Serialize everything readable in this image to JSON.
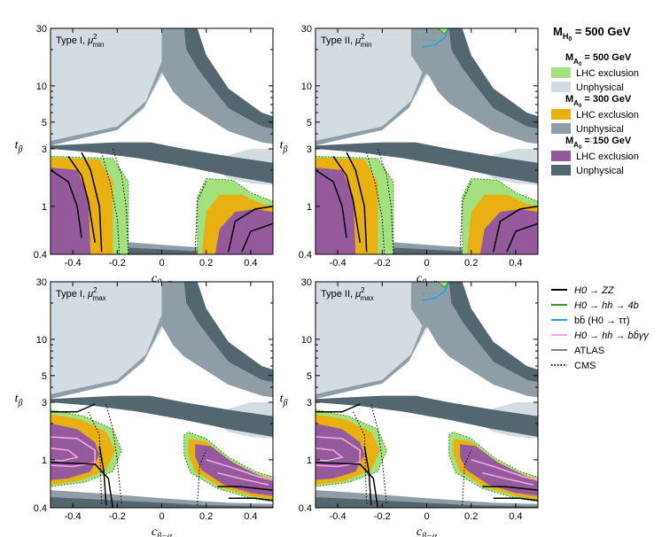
{
  "chart_data": {
    "type": "contour-exclusion",
    "main_title": "M_H0 = 500 GeV",
    "xlabel": "c_{β−α}",
    "ylabel": "t_β",
    "xlim": [
      -0.5,
      0.5
    ],
    "ylim": [
      0.4,
      30
    ],
    "yscale": "log",
    "xticks": [
      -0.4,
      -0.2,
      0,
      0.2,
      0.4
    ],
    "xtick_labels": [
      "-0.4",
      "-0.2",
      "0",
      "0.2",
      "0.4"
    ],
    "yticks": [
      0.4,
      1,
      3,
      5,
      10,
      30
    ],
    "ytick_labels": [
      "0.4",
      "1",
      "3",
      "5",
      "10",
      "30"
    ],
    "panels": [
      {
        "id": "type1-min",
        "title": "Type I, μ²_min",
        "model": "Type I",
        "mu": "min"
      },
      {
        "id": "type2-min",
        "title": "Type II, μ²_min",
        "model": "Type II",
        "mu": "min"
      },
      {
        "id": "type1-max",
        "title": "Type I, μ²_max",
        "model": "Type I",
        "mu": "max"
      },
      {
        "id": "type2-max",
        "title": "Type II, μ²_max",
        "model": "Type II",
        "mu": "max"
      }
    ],
    "region_legend": [
      {
        "heading": "M_A0 = 500 GeV",
        "exclusion_color": "#a3e07e",
        "unphysical_color": "#d3dce0"
      },
      {
        "heading": "M_A0 = 300 GeV",
        "exclusion_color": "#e8b010",
        "unphysical_color": "#8f9ea6"
      },
      {
        "heading": "M_A0 = 150 GeV",
        "exclusion_color": "#955a9c",
        "unphysical_color": "#546670"
      }
    ],
    "exclusion_label": "LHC exclusion",
    "unphysical_label": "Unphysical",
    "line_legend": [
      {
        "label": "H0 → ZZ",
        "color": "#000000",
        "style": "solid"
      },
      {
        "label": "H0 → hh → 4b",
        "color": "#3a9a1e",
        "style": "solid"
      },
      {
        "label": "bb̄ (H0 → ττ)",
        "color": "#1aa6e0",
        "style": "solid"
      },
      {
        "label": "H0 → hh → bb̄γγ",
        "color": "#f0a8e0",
        "style": "solid"
      },
      {
        "label": "ATLAS",
        "color": "#808080",
        "style": "solid"
      },
      {
        "label": "CMS",
        "color": "#000000",
        "style": "dotted"
      }
    ]
  },
  "legend": {
    "title": "M",
    "title_sub": "H",
    "title_subsub": "0",
    "title_rest": " = 500 GeV",
    "groups": [
      {
        "head": "M",
        "sub": "A",
        "subsub": "0",
        "rest": " = 500 GeV"
      },
      {
        "head": "M",
        "sub": "A",
        "subsub": "0",
        "rest": " = 300 GeV"
      },
      {
        "head": "M",
        "sub": "A",
        "subsub": "0",
        "rest": " = 150 GeV"
      }
    ]
  },
  "colors": {
    "unphys_500": "#d3dce0",
    "unphys_300": "#8f9ea6",
    "unphys_150": "#546670",
    "excl_500": "#a3e07e",
    "excl_300": "#e8b010",
    "excl_150": "#955a9c"
  }
}
